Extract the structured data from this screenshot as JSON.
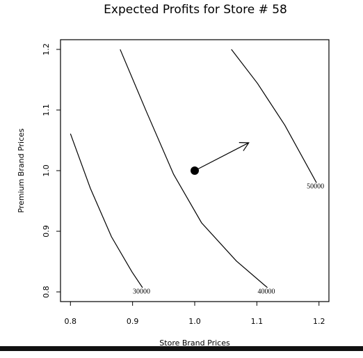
{
  "chart_data": {
    "type": "contour",
    "title": "Expected Profits for Store # 58",
    "x_label": "Store Brand Prices",
    "y_label": "Premium Brand Prices",
    "xlim": [
      0.784,
      1.216
    ],
    "ylim": [
      0.784,
      1.216
    ],
    "xticks": [
      0.8,
      0.9,
      {
        "value": 1.0,
        "label": "1.0"
      },
      1.1,
      1.2
    ],
    "yticks": [
      0.8,
      0.9,
      {
        "value": 1.0,
        "label": "1.0"
      },
      1.1,
      1.2
    ],
    "color": "#000000",
    "series": [
      {
        "level": 30000,
        "x": [
          0.8,
          0.832,
          0.866,
          0.899,
          0.916
        ],
        "y": [
          1.061,
          0.971,
          0.891,
          0.833,
          0.807
        ]
      },
      {
        "level": 40000,
        "x": [
          0.88,
          0.922,
          0.966,
          1.011,
          1.067,
          1.117
        ],
        "y": [
          1.2,
          1.098,
          0.994,
          0.914,
          0.851,
          0.807
        ]
      },
      {
        "level": 50000,
        "x": [
          1.059,
          1.101,
          1.145,
          1.196
        ],
        "y": [
          1.2,
          1.144,
          1.075,
          0.98
        ]
      }
    ],
    "point": {
      "x": 1.0,
      "y": 1.0
    },
    "arrow": {
      "x": [
        1.0,
        1.087
      ],
      "y": [
        1.0,
        1.046
      ]
    }
  }
}
